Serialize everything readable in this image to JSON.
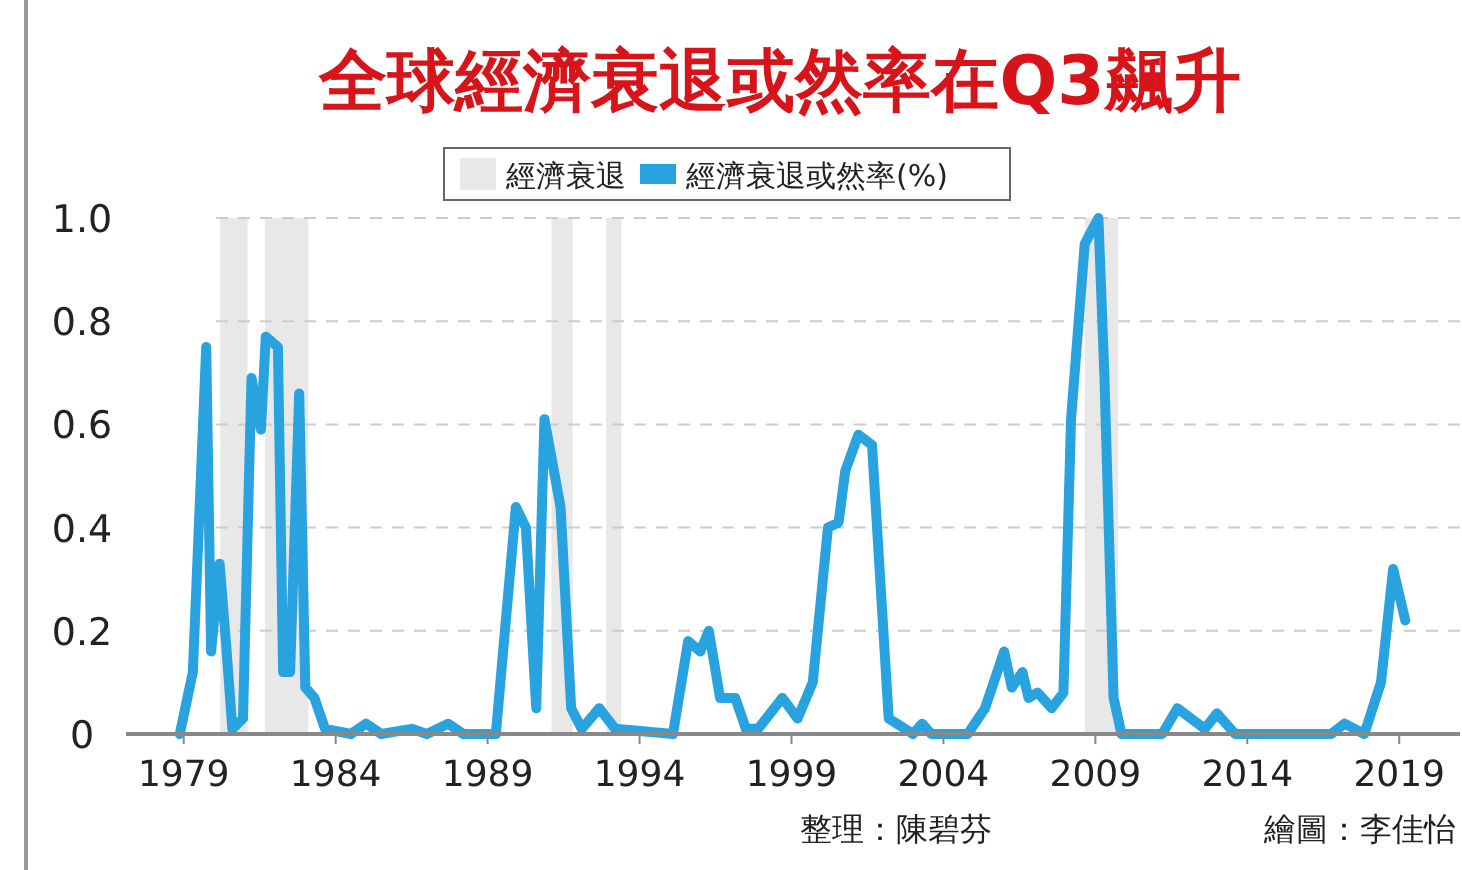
{
  "chart_data": {
    "type": "line",
    "title": "全球經濟衰退或然率在Q3飆升",
    "x": [
      1978.87,
      1979.3,
      1979.74,
      1979.9,
      1980.18,
      1980.4,
      1980.6,
      1980.95,
      1981.23,
      1981.54,
      1981.7,
      1982.1,
      1982.27,
      1982.5,
      1982.8,
      1983.0,
      1983.3,
      1983.65,
      1984.5,
      1985.0,
      1985.5,
      1986.5,
      1987.0,
      1987.7,
      1988.2,
      1989.27,
      1989.93,
      1990.26,
      1990.6,
      1990.87,
      1991.4,
      1991.75,
      1992.1,
      1992.67,
      1993.2,
      1995.1,
      1995.6,
      1996.0,
      1996.28,
      1996.65,
      1997.15,
      1997.5,
      1997.9,
      1998.7,
      1999.2,
      1999.7,
      2000.2,
      2000.55,
      2000.77,
      2001.2,
      2001.65,
      2002.2,
      2003.0,
      2003.3,
      2003.6,
      2004.8,
      2005.37,
      2006.0,
      2006.25,
      2006.6,
      2006.8,
      2007.1,
      2007.56,
      2007.95,
      2008.2,
      2008.65,
      2009.1,
      2009.3,
      2009.6,
      2009.86,
      2011.2,
      2011.7,
      2012.6,
      2013.0,
      2013.6,
      2016.76,
      2017.2,
      2017.85,
      2018.4,
      2018.8,
      2019.2
    ],
    "series": [
      {
        "name": "經濟衰退或然率(%)",
        "color": "#29a3df",
        "values": [
          0,
          0.12,
          0.75,
          0.16,
          0.33,
          0.17,
          0.01,
          0.03,
          0.69,
          0.59,
          0.77,
          0.75,
          0.12,
          0.12,
          0.66,
          0.09,
          0.07,
          0.01,
          0,
          0.02,
          0,
          0.01,
          0,
          0.02,
          0,
          0,
          0.44,
          0.4,
          0.05,
          0.61,
          0.44,
          0.05,
          0.01,
          0.05,
          0.01,
          0,
          0.18,
          0.16,
          0.2,
          0.07,
          0.07,
          0.01,
          0.01,
          0.07,
          0.03,
          0.1,
          0.4,
          0.41,
          0.51,
          0.58,
          0.56,
          0.03,
          0,
          0.02,
          0,
          0,
          0.05,
          0.16,
          0.09,
          0.12,
          0.07,
          0.08,
          0.05,
          0.08,
          0.61,
          0.95,
          1.0,
          0.69,
          0.07,
          0,
          0,
          0.05,
          0.01,
          0.04,
          0,
          0,
          0.02,
          0,
          0.1,
          0.32,
          0.22
        ]
      }
    ],
    "bands": [
      {
        "axis": "x",
        "from": 1980.2,
        "to": 1981.1,
        "label": "經濟衰退",
        "color": "#e8e8e8"
      },
      {
        "axis": "x",
        "from": 1981.67,
        "to": 1983.1,
        "color": "#e8e8e8"
      },
      {
        "axis": "x",
        "from": 1991.1,
        "to": 1991.8,
        "color": "#e8e8e8"
      },
      {
        "axis": "x",
        "from": 1992.9,
        "to": 1993.4,
        "color": "#e8e8e8"
      },
      {
        "axis": "x",
        "from": 2008.65,
        "to": 2009.75,
        "color": "#e8e8e8"
      }
    ],
    "xlim": [
      1977.1,
      2021
    ],
    "xticks": [
      1979,
      1984,
      1989,
      1994,
      1999,
      2004,
      2009,
      2014,
      2019
    ],
    "ylim": [
      0,
      1
    ],
    "yticks": [
      0,
      {
        "value": 0.2,
        "label": "0.2"
      },
      {
        "value": 0.4,
        "label": "0.4"
      },
      {
        "value": 0.6,
        "label": "0.6"
      },
      {
        "value": 0.8,
        "label": "0.8"
      },
      {
        "value": 1,
        "label": "1.0"
      }
    ],
    "grid": "y",
    "legend": "top",
    "marker": "none",
    "line_style": "solid",
    "annotations": [
      "整理：陳碧芬",
      "繪圖：李佳怡"
    ]
  }
}
